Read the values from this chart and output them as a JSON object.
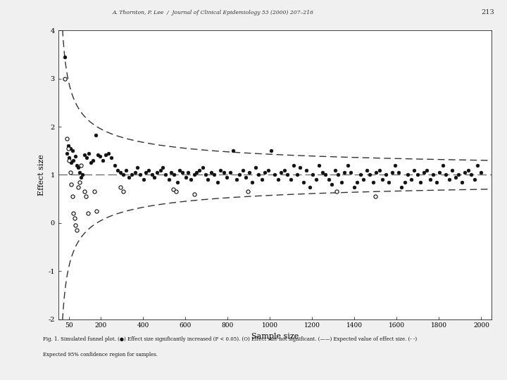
{
  "title": "A. Thornton, P. Lee  /  Journal of Clinical Epidemiology 53 (2000) 207–216",
  "page_num": "213",
  "xlabel": "Sample size",
  "ylabel": "Effect size",
  "xlim": [
    0,
    2050
  ],
  "ylim": [
    -2,
    4
  ],
  "xticks": [
    50,
    200,
    400,
    600,
    800,
    1000,
    1200,
    1400,
    1600,
    1800,
    2000
  ],
  "yticks": [
    -2,
    -1,
    0,
    1,
    2,
    3,
    4
  ],
  "true_effect": 1.0,
  "caption_line1": "Fig. 1. Simulated funnel plot. (●) Effect size significantly increased (P < 0.05). (O) Effect size not significant. (——) Expected value of effect size. (- -)",
  "caption_line2": "Expected 95% confidence region for samples.",
  "ci_k": 13.5,
  "significant_points": [
    [
      32,
      3.45
    ],
    [
      42,
      1.45
    ],
    [
      48,
      1.6
    ],
    [
      52,
      1.35
    ],
    [
      58,
      1.55
    ],
    [
      62,
      1.25
    ],
    [
      68,
      1.5
    ],
    [
      72,
      1.3
    ],
    [
      80,
      1.38
    ],
    [
      88,
      1.2
    ],
    [
      95,
      1.15
    ],
    [
      102,
      1.05
    ],
    [
      108,
      0.95
    ],
    [
      115,
      1.0
    ],
    [
      125,
      1.42
    ],
    [
      135,
      1.35
    ],
    [
      145,
      1.45
    ],
    [
      155,
      1.25
    ],
    [
      165,
      1.3
    ],
    [
      178,
      1.82
    ],
    [
      188,
      1.42
    ],
    [
      198,
      1.38
    ],
    [
      212,
      1.3
    ],
    [
      225,
      1.42
    ],
    [
      238,
      1.45
    ],
    [
      252,
      1.35
    ],
    [
      268,
      1.2
    ],
    [
      282,
      1.1
    ],
    [
      295,
      1.05
    ],
    [
      308,
      1.0
    ],
    [
      322,
      1.1
    ],
    [
      335,
      0.95
    ],
    [
      348,
      1.0
    ],
    [
      362,
      1.05
    ],
    [
      375,
      1.15
    ],
    [
      388,
      1.0
    ],
    [
      402,
      0.9
    ],
    [
      415,
      1.05
    ],
    [
      428,
      1.1
    ],
    [
      442,
      1.0
    ],
    [
      455,
      0.95
    ],
    [
      468,
      1.05
    ],
    [
      482,
      1.1
    ],
    [
      495,
      1.15
    ],
    [
      508,
      1.0
    ],
    [
      522,
      0.9
    ],
    [
      535,
      1.05
    ],
    [
      548,
      1.0
    ],
    [
      562,
      0.85
    ],
    [
      575,
      1.1
    ],
    [
      588,
      1.05
    ],
    [
      602,
      0.95
    ],
    [
      615,
      1.05
    ],
    [
      628,
      0.9
    ],
    [
      642,
      1.0
    ],
    [
      655,
      1.05
    ],
    [
      668,
      1.1
    ],
    [
      682,
      1.15
    ],
    [
      695,
      1.0
    ],
    [
      708,
      0.9
    ],
    [
      722,
      1.05
    ],
    [
      738,
      1.0
    ],
    [
      752,
      0.85
    ],
    [
      768,
      1.1
    ],
    [
      782,
      1.05
    ],
    [
      798,
      0.95
    ],
    [
      812,
      1.05
    ],
    [
      828,
      1.5
    ],
    [
      842,
      0.9
    ],
    [
      858,
      1.0
    ],
    [
      872,
      1.1
    ],
    [
      888,
      0.95
    ],
    [
      902,
      1.05
    ],
    [
      918,
      0.85
    ],
    [
      932,
      1.15
    ],
    [
      948,
      1.0
    ],
    [
      962,
      0.9
    ],
    [
      978,
      1.05
    ],
    [
      992,
      1.1
    ],
    [
      1008,
      1.5
    ],
    [
      1022,
      1.0
    ],
    [
      1038,
      0.9
    ],
    [
      1052,
      1.05
    ],
    [
      1068,
      1.1
    ],
    [
      1082,
      1.0
    ],
    [
      1098,
      0.9
    ],
    [
      1112,
      1.2
    ],
    [
      1128,
      1.0
    ],
    [
      1142,
      1.15
    ],
    [
      1158,
      0.85
    ],
    [
      1172,
      1.1
    ],
    [
      1188,
      0.75
    ],
    [
      1202,
      1.0
    ],
    [
      1218,
      0.9
    ],
    [
      1232,
      1.2
    ],
    [
      1248,
      1.05
    ],
    [
      1262,
      1.0
    ],
    [
      1278,
      0.9
    ],
    [
      1292,
      0.8
    ],
    [
      1308,
      1.1
    ],
    [
      1322,
      1.0
    ],
    [
      1338,
      0.85
    ],
    [
      1352,
      1.05
    ],
    [
      1368,
      1.2
    ],
    [
      1382,
      1.05
    ],
    [
      1398,
      0.75
    ],
    [
      1412,
      0.85
    ],
    [
      1428,
      1.0
    ],
    [
      1442,
      0.9
    ],
    [
      1458,
      1.1
    ],
    [
      1472,
      1.0
    ],
    [
      1488,
      0.85
    ],
    [
      1502,
      1.05
    ],
    [
      1518,
      1.1
    ],
    [
      1532,
      0.9
    ],
    [
      1548,
      1.0
    ],
    [
      1562,
      0.85
    ],
    [
      1578,
      1.05
    ],
    [
      1592,
      1.2
    ],
    [
      1608,
      1.05
    ],
    [
      1622,
      0.75
    ],
    [
      1638,
      0.85
    ],
    [
      1652,
      1.0
    ],
    [
      1668,
      0.9
    ],
    [
      1682,
      1.1
    ],
    [
      1698,
      1.0
    ],
    [
      1712,
      0.85
    ],
    [
      1728,
      1.05
    ],
    [
      1742,
      1.1
    ],
    [
      1758,
      0.9
    ],
    [
      1772,
      1.0
    ],
    [
      1788,
      0.85
    ],
    [
      1802,
      1.05
    ],
    [
      1818,
      1.2
    ],
    [
      1832,
      1.0
    ],
    [
      1848,
      0.9
    ],
    [
      1862,
      1.1
    ],
    [
      1878,
      0.95
    ],
    [
      1892,
      1.0
    ],
    [
      1908,
      0.85
    ],
    [
      1922,
      1.05
    ],
    [
      1938,
      1.1
    ],
    [
      1952,
      1.0
    ],
    [
      1968,
      0.9
    ],
    [
      1982,
      1.2
    ],
    [
      1998,
      1.05
    ]
  ],
  "nonsig_points": [
    [
      32,
      3.0
    ],
    [
      42,
      1.75
    ],
    [
      48,
      1.55
    ],
    [
      52,
      1.3
    ],
    [
      58,
      1.05
    ],
    [
      62,
      0.8
    ],
    [
      68,
      0.55
    ],
    [
      72,
      0.2
    ],
    [
      78,
      0.1
    ],
    [
      82,
      -0.05
    ],
    [
      88,
      -0.15
    ],
    [
      95,
      0.75
    ],
    [
      102,
      0.85
    ],
    [
      108,
      1.2
    ],
    [
      125,
      0.65
    ],
    [
      132,
      0.55
    ],
    [
      142,
      0.2
    ],
    [
      172,
      0.65
    ],
    [
      182,
      0.25
    ],
    [
      295,
      0.75
    ],
    [
      308,
      0.65
    ],
    [
      545,
      0.7
    ],
    [
      558,
      0.65
    ],
    [
      642,
      0.6
    ],
    [
      895,
      0.65
    ],
    [
      1315,
      0.65
    ],
    [
      1498,
      0.55
    ]
  ],
  "bg_color": "#f0f0f0",
  "plot_bg": "#ffffff",
  "point_color_sig": "#111111",
  "point_color_nonsig": "#ffffff",
  "point_edgecolor": "#111111",
  "line_color": "#666666",
  "ci_color": "#333333"
}
